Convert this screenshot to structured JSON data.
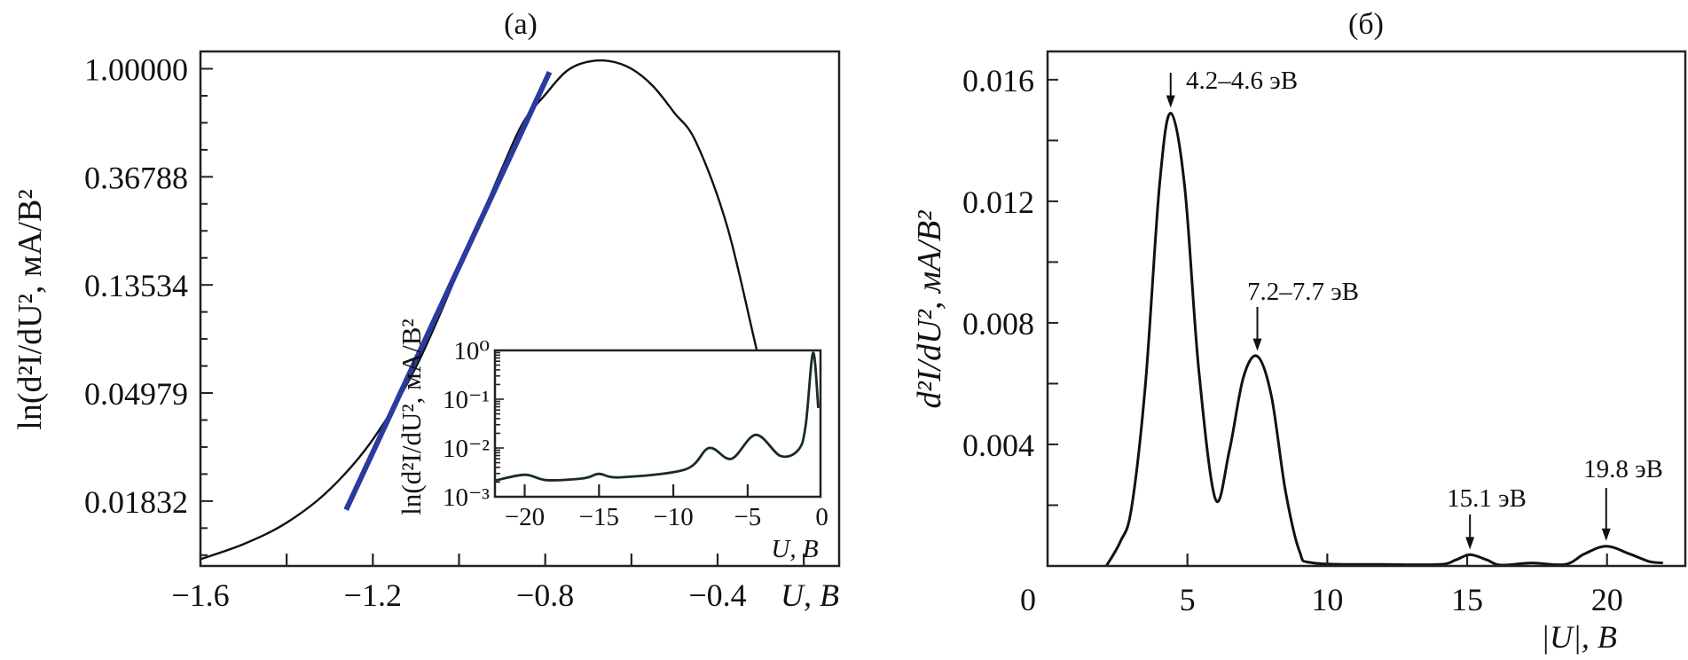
{
  "chart_data": [
    {
      "panel": "a",
      "type": "line",
      "title": "(a)",
      "xlabel": "U, В",
      "ylabel": "ln(d²I/dU², мА/В²",
      "xlim": [
        -1.6,
        -0.118
      ],
      "ylim": [
        0.01005,
        1.1735
      ],
      "yscale": "log (base e)",
      "xticks": [
        -1.6,
        -1.2,
        -0.8,
        -0.4
      ],
      "xtick_labels": [
        "−1.6",
        "−1.2",
        "−0.8",
        "−0.4"
      ],
      "yticks": [
        1.0,
        0.36788,
        0.13534,
        0.04979,
        0.01832
      ],
      "ytick_labels": [
        "1.00000",
        "0.36788",
        "0.13534",
        "0.04979",
        "0.01832"
      ],
      "grid": false,
      "series": [
        {
          "color": "#111111",
          "x": [
            -1.6,
            -1.5,
            -1.4,
            -1.3,
            -1.2,
            -1.1,
            -1.0,
            -0.9,
            -0.85,
            -0.8,
            -0.75,
            -0.7,
            -0.65,
            -0.6,
            -0.55,
            -0.5,
            -0.45,
            -0.377,
            -0.307,
            -0.24
          ],
          "y": [
            0.0107,
            0.0123,
            0.015,
            0.0204,
            0.0324,
            0.0633,
            0.156,
            0.399,
            0.613,
            0.787,
            0.98,
            1.067,
            1.073,
            1.0,
            0.852,
            0.664,
            0.507,
            0.23,
            0.0714,
            0.0238
          ]
        },
        {
          "color": "#2b3a9e",
          "x": [
            -1.262,
            -0.79
          ],
          "y": [
            0.0169,
            0.97
          ]
        }
      ]
    },
    {
      "panel": "a-inset",
      "type": "line",
      "xlabel": "U, В",
      "ylabel": "ln(d²I/dU², мА/В²",
      "xlim": [
        -22,
        -0.1
      ],
      "ylim": [
        0.001,
        1
      ],
      "yscale": "log",
      "xticks": [
        -20,
        -15,
        -10,
        -5,
        0
      ],
      "xtick_labels": [
        "−20",
        "−15",
        "−10",
        "−5",
        "0"
      ],
      "yticks": [
        1,
        0.1,
        0.01,
        0.001
      ],
      "ytick_labels": [
        "10⁰",
        "10⁻¹",
        "10⁻²",
        "10⁻³"
      ],
      "series": [
        {
          "color": "#1a2a2a",
          "x": [
            -22,
            -20,
            -18.5,
            -16,
            -15,
            -13.6,
            -9.2,
            -7.6,
            -6.1,
            -4.45,
            -2.8,
            -1.6,
            -1.1,
            -0.6,
            -0.25
          ],
          "y": [
            0.00214,
            0.00282,
            0.00219,
            0.0024,
            0.00295,
            0.0025,
            0.00363,
            0.01,
            0.006,
            0.0186,
            0.0069,
            0.0091,
            0.0282,
            0.89,
            0.066
          ]
        }
      ]
    },
    {
      "panel": "b",
      "type": "line",
      "title": "(б)",
      "xlabel": "|U|, В",
      "ylabel": "d²I/dU², мА/В²",
      "xlim": [
        0,
        22.8
      ],
      "ylim": [
        0,
        0.01693
      ],
      "xticks": [
        0,
        5,
        10,
        15,
        20
      ],
      "xtick_labels": [
        "0",
        "5",
        "10",
        "15",
        "20"
      ],
      "yticks": [
        0.004,
        0.008,
        0.012,
        0.016
      ],
      "ytick_labels": [
        "0.004",
        "0.008",
        "0.012",
        "0.016"
      ],
      "grid": false,
      "series": [
        {
          "color": "#111111",
          "x": [
            2.1,
            2.6,
            3.0,
            3.5,
            4.0,
            4.4,
            4.9,
            5.4,
            6.0,
            6.5,
            7.0,
            7.5,
            8.0,
            8.5,
            9.0,
            9.5,
            12,
            14,
            14.6,
            15.1,
            15.7,
            16.2,
            17.3,
            18.5,
            19.2,
            19.97,
            20.8,
            21.5,
            22
          ],
          "y": [
            0,
            0.0008,
            0.0019,
            0.006,
            0.0125,
            0.0149,
            0.0125,
            0.0065,
            0.0022,
            0.0038,
            0.0062,
            0.0069,
            0.0056,
            0.0025,
            0.0005,
            0.0001,
            5e-05,
            5e-05,
            0.0002,
            0.00037,
            0.0002,
            3e-05,
            0.0001,
            5e-05,
            0.0004,
            0.00065,
            0.0004,
            0.00015,
            0.0001
          ]
        }
      ],
      "annotations": [
        {
          "text": "4.2–4.6 эВ",
          "x": 4.4,
          "y": 0.0149
        },
        {
          "text": "7.2–7.7 эВ",
          "x": 7.5,
          "y": 0.0069
        },
        {
          "text": "15.1 эВ",
          "x": 15.1,
          "y": 0.00037
        },
        {
          "text": "19.8 эВ",
          "x": 19.97,
          "y": 0.00065
        }
      ]
    }
  ]
}
